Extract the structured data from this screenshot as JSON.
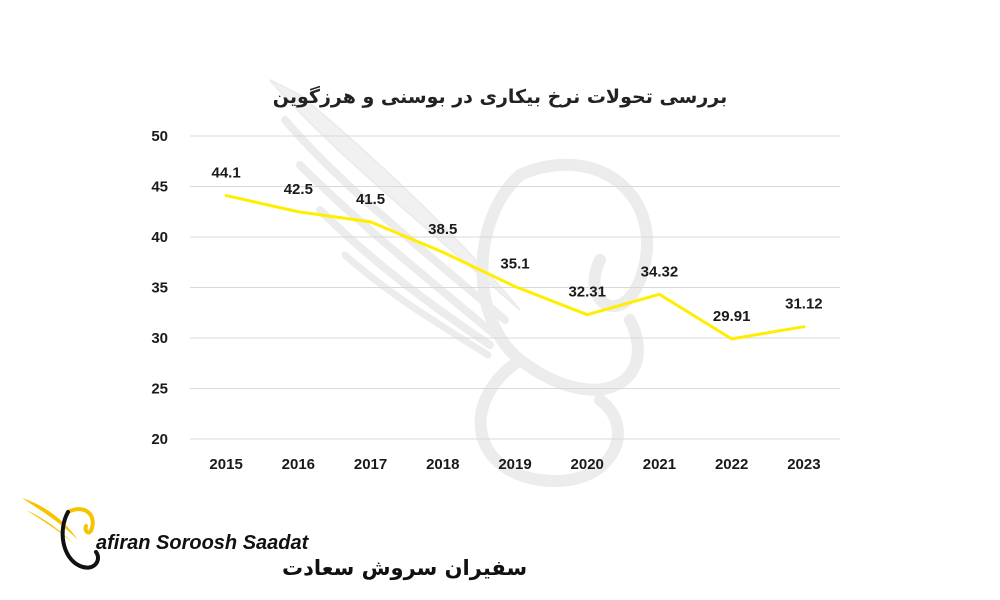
{
  "chart_data": {
    "type": "line",
    "title": "بررسی تحولات نرخ بیکاری در بوسنی و هرزگوین",
    "categories": [
      "2015",
      "2016",
      "2017",
      "2018",
      "2019",
      "2020",
      "2021",
      "2022",
      "2023"
    ],
    "series": [
      {
        "values": [
          44.1,
          42.5,
          41.5,
          38.5,
          35.1,
          32.31,
          34.32,
          29.91,
          31.12
        ],
        "labels": [
          "44.1",
          "42.5",
          "41.5",
          "38.5",
          "35.1",
          "32.31",
          "34.32",
          "29.91",
          "31.12"
        ],
        "color": "#ffee00"
      }
    ],
    "y_ticks": [
      "20",
      "25",
      "30",
      "35",
      "40",
      "45",
      "50"
    ],
    "ylim": [
      20,
      50
    ],
    "xlabel": "",
    "ylabel": "",
    "grid": "horizontal",
    "legend": "none"
  },
  "branding": {
    "name_en": "afiran Soroosh Saadat",
    "name_fa": "سفیران سروش سعادت",
    "logo_icon": "winged-swan-logo",
    "logo_color": "#f5c400",
    "watermark_icon": "winged-swan-watermark"
  },
  "colors": {
    "line": "#ffee00",
    "grid": "#d9d9d9",
    "text": "#1a1a1a",
    "watermark": "#ececec"
  }
}
